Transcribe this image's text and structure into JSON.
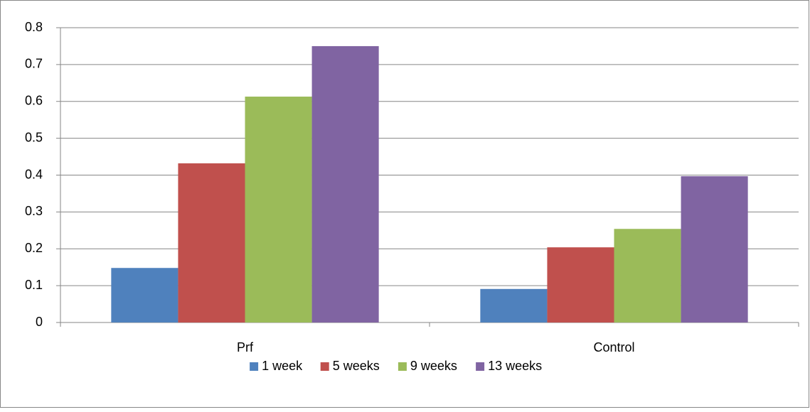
{
  "chart_data": {
    "type": "bar",
    "categories": [
      "Prf",
      "Control"
    ],
    "series": [
      {
        "name": "1 week",
        "color": "#4f81bd",
        "values": [
          0.148,
          0.091
        ]
      },
      {
        "name": "5 weeks",
        "color": "#c0504d",
        "values": [
          0.432,
          0.204
        ]
      },
      {
        "name": "9 weeks",
        "color": "#9bbb59",
        "values": [
          0.613,
          0.254
        ]
      },
      {
        "name": "13 weeks",
        "color": "#8064a2",
        "values": [
          0.75,
          0.397
        ]
      }
    ],
    "ylim": [
      0,
      0.8
    ],
    "yticks": [
      0,
      0.1,
      0.2,
      0.3,
      0.4,
      0.5,
      0.6,
      0.7,
      0.8
    ],
    "grid": true,
    "legend": "bottom"
  }
}
